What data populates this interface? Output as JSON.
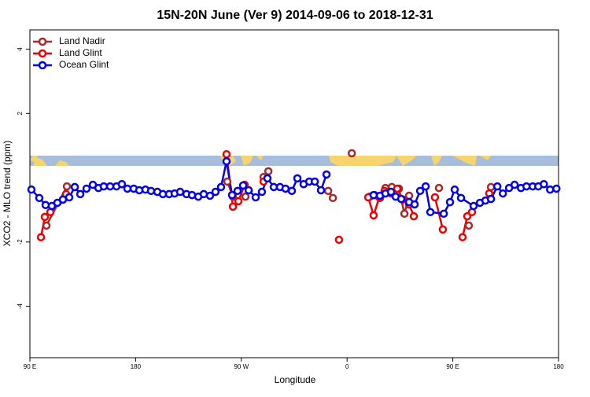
{
  "chart_data": {
    "type": "line",
    "title": "15N-20N June (Ver 9)   2014-09-06 to 2018-12-31",
    "x_label": "Longitude",
    "y_label": "XCO2 - MLO trend (ppm)",
    "xlim": [
      90,
      540
    ],
    "xticks": [
      {
        "value": 90,
        "label": "90 E"
      },
      180,
      {
        "value": 270,
        "label": "90 W"
      },
      {
        "value": 360,
        "label": "0"
      },
      {
        "value": 450,
        "label": "90 E"
      },
      {
        "value": 540,
        "label": "180"
      }
    ],
    "ylim": [
      -5.6,
      4.6
    ],
    "yticks": [
      -4,
      -2,
      2,
      4
    ],
    "legend": "top-left",
    "series": [
      {
        "name": "Land Nadir",
        "color": "#a52a2a",
        "x": [
          104.1,
          121.5,
          null,
          258.1,
          262.8,
          null,
          273.5,
          null,
          288.9,
          293.0,
          null,
          343.9,
          347.9,
          null,
          364.0,
          null,
          379.4,
          383.4,
          388.1,
          392.7,
          398.1,
          404.1,
          408.8,
          412.8,
          null,
          438.2,
          null,
          463.6,
          null,
          482.5
        ],
        "values": [
          -1.49,
          -0.27,
          null,
          -0.12,
          -0.59,
          null,
          -0.59,
          null,
          0.02,
          0.2,
          null,
          -0.41,
          -0.63,
          null,
          0.76,
          null,
          -0.59,
          -0.54,
          -0.63,
          -0.32,
          -0.29,
          -0.34,
          -1.12,
          -0.56,
          null,
          -0.32,
          null,
          -1.49,
          null,
          -0.29
        ]
      },
      {
        "name": "Land Glint",
        "color": "#ee0000",
        "x": [
          99.4,
          102.7,
          107.4,
          null,
          120.8,
          null,
          257.4,
          262.8,
          267.5,
          272.8,
          null,
          288.9,
          null,
          353.1,
          null,
          378.0,
          382.6,
          387.4,
          392.0,
          397.4,
          402.7,
          407.4,
          412.8,
          416.8,
          null,
          434.8,
          441.5,
          null,
          458.3,
          462.3,
          466.3,
          null,
          481.0
        ],
        "values": [
          -1.85,
          -1.22,
          -1.07,
          null,
          -0.51,
          null,
          0.73,
          -0.9,
          -0.73,
          -0.22,
          null,
          -0.12,
          null,
          -1.93,
          null,
          -0.61,
          -1.17,
          -0.61,
          -0.41,
          -0.49,
          -0.34,
          -0.68,
          -0.83,
          -1.2,
          null,
          -0.61,
          -1.61,
          null,
          -1.85,
          -1.2,
          -1.07,
          null,
          -0.49
        ]
      },
      {
        "name": "Ocean Glint",
        "color": "#0000ee",
        "x": [
          91.3,
          98.0,
          103.4,
          108.7,
          113.4,
          118.1,
          123.5,
          128.2,
          132.9,
          138.2,
          143.6,
          148.3,
          152.9,
          158.3,
          163.7,
          168.3,
          173.0,
          178.4,
          183.1,
          188.4,
          193.1,
          198.5,
          203.2,
          208.5,
          213.2,
          217.9,
          223.3,
          228.0,
          233.3,
          238.0,
          243.3,
          248.0,
          252.7,
          257.4,
          262.1,
          266.8,
          271.5,
          276.2,
          282.2,
          287.5,
          292.2,
          297.6,
          302.9,
          307.6,
          313.0,
          317.7,
          323.0,
          327.8,
          332.5,
          337.8,
          342.5,
          null,
          382.6,
          388.0,
          392.7,
          397.4,
          401.4,
          406.1,
          412.8,
          417.5,
          422.2,
          426.9,
          430.9,
          442.3,
          447.6,
          451.6,
          457.0,
          467.7,
          473.1,
          477.8,
          482.5,
          487.9,
          492.6,
          497.9,
          502.6,
          508.0,
          512.7,
          518.0,
          522.8,
          527.5,
          532.8,
          538.2
        ],
        "values": [
          -0.37,
          -0.63,
          -0.85,
          -0.88,
          -0.78,
          -0.68,
          -0.61,
          -0.29,
          -0.51,
          -0.34,
          -0.22,
          -0.32,
          -0.27,
          -0.27,
          -0.27,
          -0.2,
          -0.34,
          -0.34,
          -0.39,
          -0.37,
          -0.41,
          -0.44,
          -0.51,
          -0.51,
          -0.49,
          -0.44,
          -0.51,
          -0.54,
          -0.59,
          -0.51,
          -0.56,
          -0.44,
          -0.29,
          0.51,
          -0.54,
          -0.41,
          -0.24,
          -0.39,
          -0.61,
          -0.44,
          -0.02,
          -0.29,
          -0.29,
          -0.34,
          -0.41,
          -0.02,
          -0.2,
          -0.12,
          -0.12,
          -0.39,
          0.1,
          null,
          -0.54,
          -0.56,
          -0.49,
          -0.44,
          -0.59,
          -0.66,
          -0.76,
          -0.83,
          -0.41,
          -0.27,
          -1.07,
          -1.12,
          -0.76,
          -0.37,
          -0.63,
          -0.88,
          -0.78,
          -0.71,
          -0.66,
          -0.27,
          -0.49,
          -0.32,
          -0.22,
          -0.32,
          -0.27,
          -0.27,
          -0.27,
          -0.2,
          -0.37,
          -0.34
        ]
      }
    ]
  }
}
